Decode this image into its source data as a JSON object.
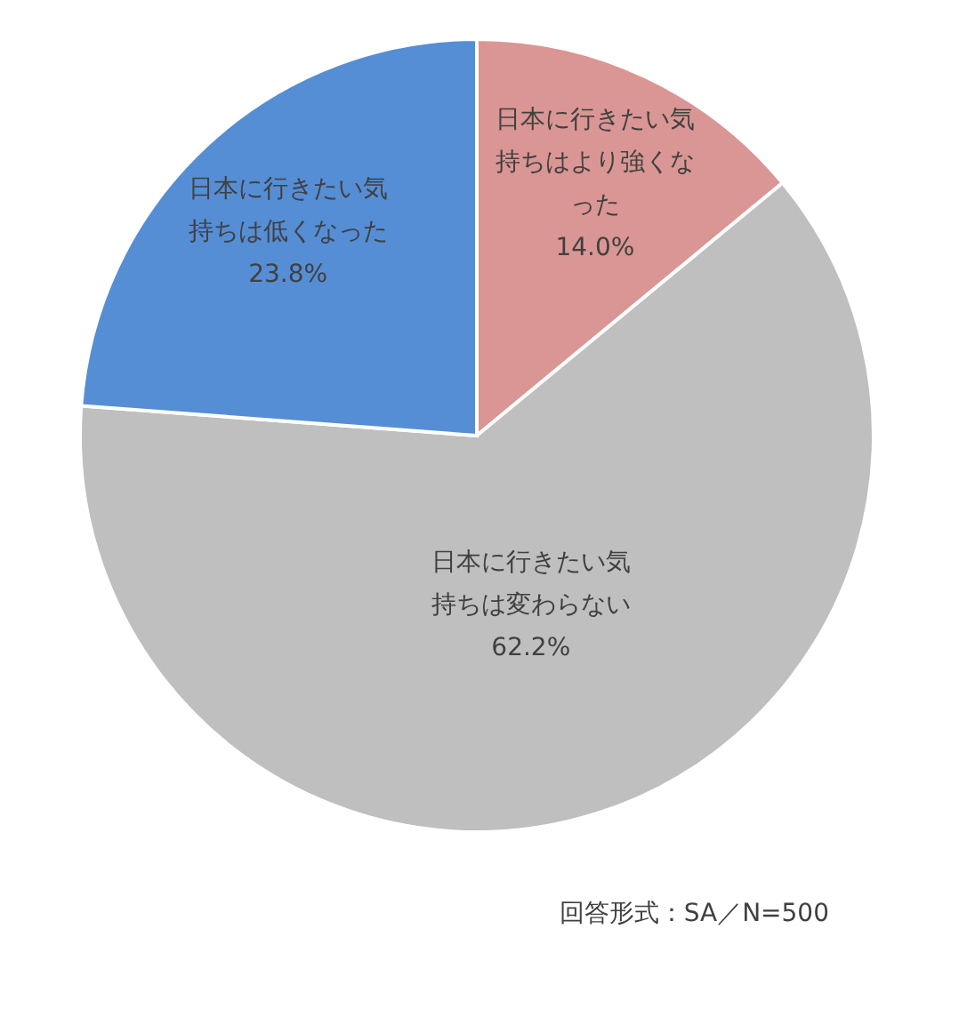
{
  "chart_data": {
    "type": "pie",
    "categories": [
      "日本に行きたい気持ちはより強くなった",
      "日本に行きたい気持ちは変わらない",
      "日本に行きたい気持ちは低くなった"
    ],
    "values": [
      14.0,
      62.2,
      23.8
    ],
    "value_labels": [
      "14.0%",
      "62.2%",
      "23.8%"
    ],
    "colors": [
      "#da9694",
      "#bfbfbf",
      "#558ed5"
    ],
    "annotations": [
      "回答形式：SA／N=500"
    ]
  }
}
